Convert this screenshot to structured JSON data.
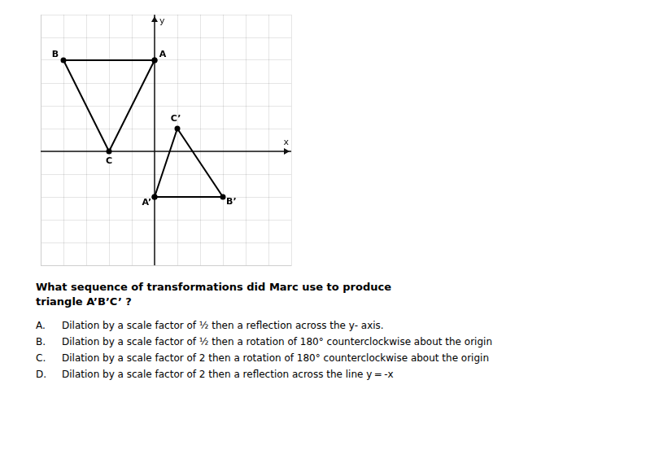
{
  "chart_data": {
    "type": "line",
    "x_label": "x",
    "y_label": "y",
    "xlim": [
      -5,
      6
    ],
    "ylim": [
      -5,
      6
    ],
    "xticks": [
      -5,
      -4,
      -3,
      -2,
      -1,
      0,
      1,
      2,
      3,
      4,
      5,
      6
    ],
    "yticks": [
      -5,
      -4,
      -3,
      -2,
      -1,
      0,
      1,
      2,
      3,
      4,
      5,
      6
    ],
    "tick_labels": false,
    "grid": true,
    "data_labels": true,
    "series": [
      {
        "x": [
          0,
          -4,
          -2
        ],
        "values": [
          4,
          4,
          0
        ],
        "value_labels": [
          "A",
          "B",
          "C"
        ],
        "color": "#000000"
      },
      {
        "x": [
          0,
          3,
          1
        ],
        "values": [
          -2,
          -2,
          1
        ],
        "value_labels": [
          "A’",
          "B’",
          "C’"
        ],
        "color": "#000000"
      }
    ],
    "annotations": [
      "What sequence of transformations did Marc use to produce\ntriangle A’B’C’  ?",
      "A.",
      "Dilation by a scale factor of ½ then a reflection across the y- axis.",
      "B.",
      "Dilation by a scale factor of ½ then a rotation of 180° counterclockwise about the origin",
      "C.",
      "Dilation by a scale factor of 2 then a rotation of 180° counterclockwise about the origin",
      "D.",
      "Dilation by a scale factor of 2 then a reflection across the line y = -x"
    ]
  }
}
